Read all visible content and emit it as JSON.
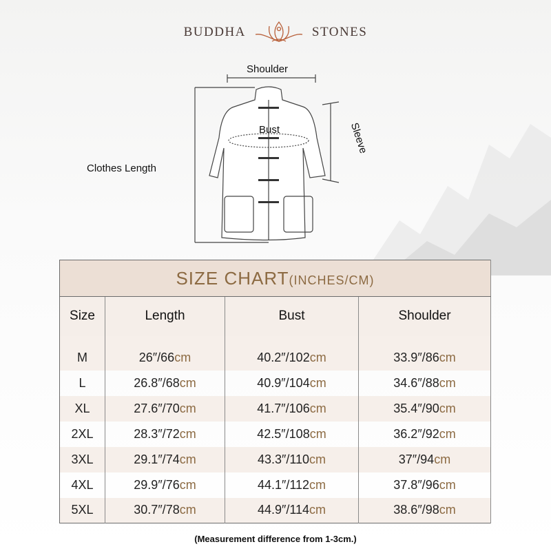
{
  "brand": {
    "left": "BUDDHA",
    "right": "STONES"
  },
  "diagram": {
    "shoulder": "Shoulder",
    "bust": "Bust",
    "sleeve": "Sleeve",
    "length": "Clothes Length"
  },
  "table": {
    "title": "SIZE CHART",
    "title_units": "(INCHES/CM)",
    "headers": [
      "Size",
      "Length",
      "Bust",
      "Shoulder"
    ],
    "rows": [
      {
        "size": "M",
        "length": "26″/66",
        "bust": "40.2″/102",
        "shoulder": "33.9″/86"
      },
      {
        "size": "L",
        "length": "26.8″/68",
        "bust": "40.9″/104",
        "shoulder": "34.6″/88"
      },
      {
        "size": "XL",
        "length": "27.6″/70",
        "bust": "41.7″/106",
        "shoulder": "35.4″/90"
      },
      {
        "size": "2XL",
        "length": "28.3″/72",
        "bust": "42.5″/108",
        "shoulder": "36.2″/92"
      },
      {
        "size": "3XL",
        "length": "29.1″/74",
        "bust": "43.3″/110",
        "shoulder": "37″/94"
      },
      {
        "size": "4XL",
        "length": "29.9″/76",
        "bust": "44.1″/112",
        "shoulder": "37.8″/96"
      },
      {
        "size": "5XL",
        "length": "30.7″/78",
        "bust": "44.9″/114",
        "shoulder": "38.6″/98"
      }
    ],
    "unit": "cm"
  },
  "note": "(Measurement difference from 1-3cm.)",
  "colors": {
    "accent": "#8c6a42",
    "title_bg": "#ecdfd5",
    "logo": "#b8603a"
  }
}
